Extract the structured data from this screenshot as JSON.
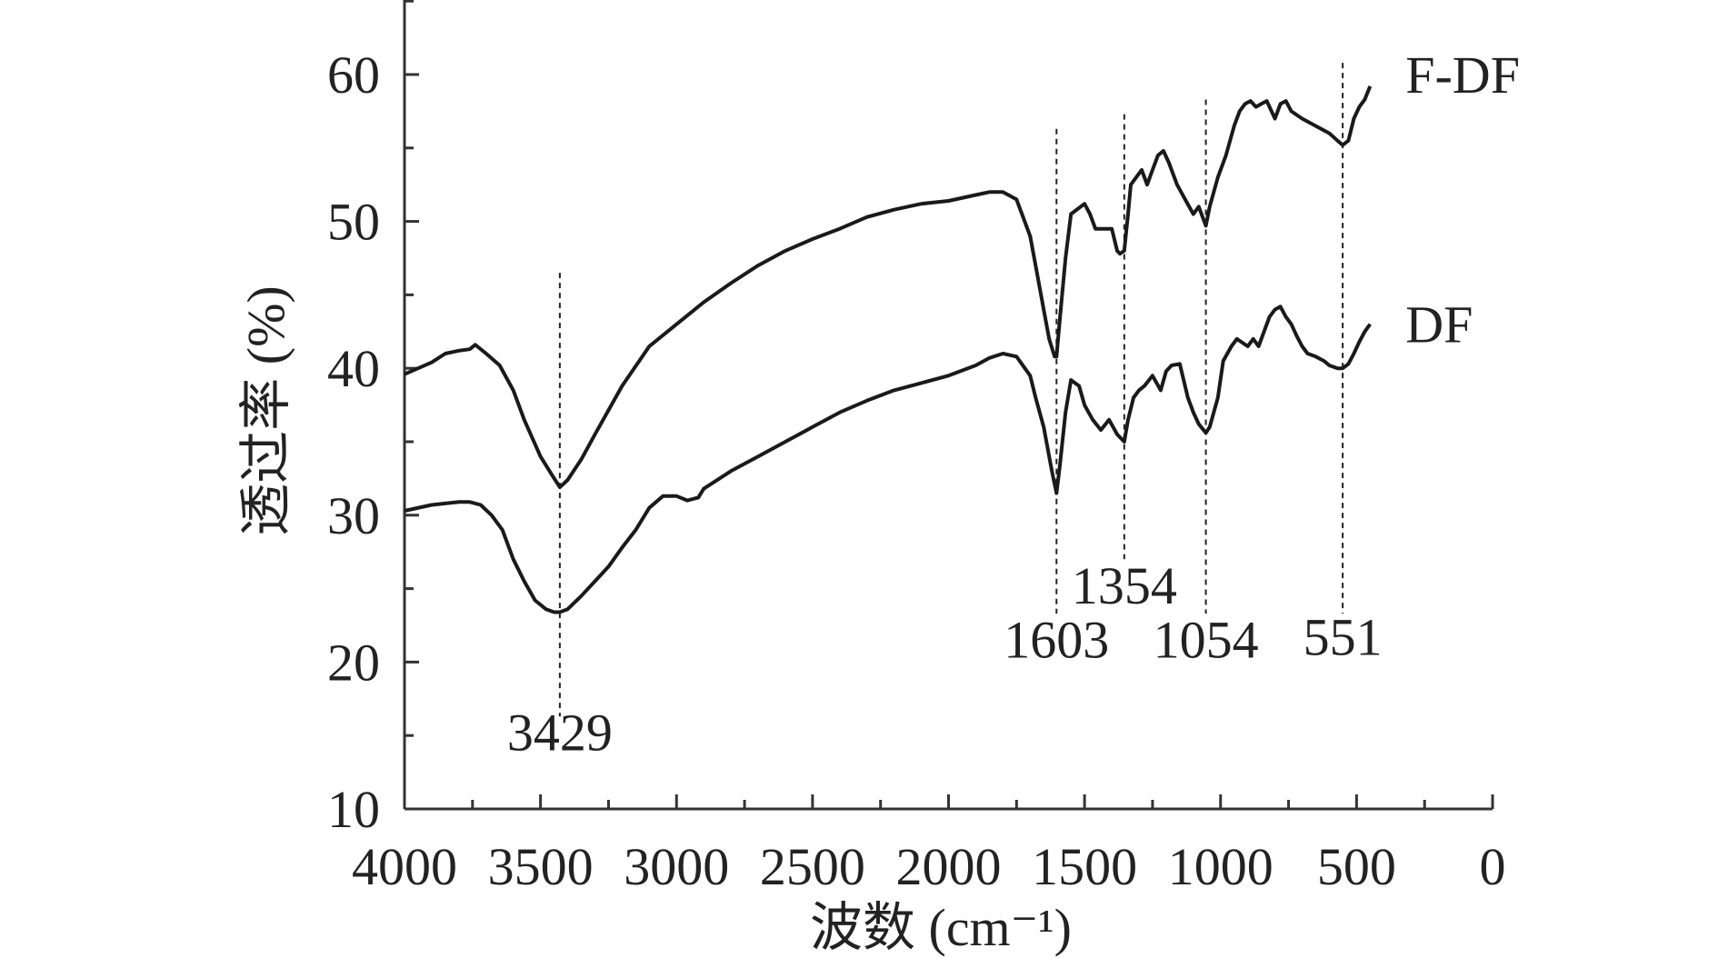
{
  "chart_data": {
    "type": "line",
    "title": "",
    "xlabel": "波数 (cm⁻¹)",
    "ylabel": "透过率 (%)",
    "xlim": [
      4000,
      0
    ],
    "ylim": [
      10,
      65
    ],
    "x_reversed": true,
    "x_ticks": [
      4000,
      3500,
      3000,
      2500,
      2000,
      1500,
      1000,
      500,
      0
    ],
    "x_tick_labels": [
      "4000",
      "3500",
      "3000",
      "2500",
      "2000",
      "1500",
      "1000",
      "500",
      "0"
    ],
    "y_ticks": [
      10,
      20,
      30,
      40,
      50,
      60
    ],
    "y_tick_labels": [
      "10",
      "20",
      "30",
      "40",
      "50",
      "60"
    ],
    "grid": false,
    "line_color": "#1a1a1a",
    "series": [
      {
        "name": "F-DF",
        "x": [
          4000,
          3900,
          3850,
          3800,
          3760,
          3740,
          3700,
          3650,
          3600,
          3560,
          3500,
          3460,
          3429,
          3400,
          3350,
          3300,
          3200,
          3100,
          3000,
          2900,
          2800,
          2700,
          2600,
          2500,
          2400,
          2300,
          2200,
          2100,
          2000,
          1900,
          1850,
          1800,
          1750,
          1700,
          1680,
          1650,
          1630,
          1610,
          1603,
          1590,
          1570,
          1550,
          1500,
          1480,
          1460,
          1420,
          1400,
          1380,
          1370,
          1354,
          1340,
          1330,
          1310,
          1290,
          1270,
          1250,
          1230,
          1210,
          1190,
          1160,
          1130,
          1100,
          1080,
          1054,
          1040,
          1010,
          980,
          950,
          930,
          910,
          890,
          870,
          850,
          830,
          800,
          780,
          760,
          740,
          700,
          650,
          600,
          570,
          551,
          530,
          510,
          490,
          470,
          450
        ],
        "y": [
          39.6,
          40.4,
          41.0,
          41.2,
          41.3,
          41.6,
          41.0,
          40.2,
          38.5,
          36.5,
          34.0,
          32.8,
          31.9,
          32.4,
          33.8,
          35.5,
          38.8,
          41.5,
          43.0,
          44.5,
          45.8,
          47.0,
          48.0,
          48.8,
          49.5,
          50.3,
          50.8,
          51.2,
          51.4,
          51.8,
          52.0,
          52.0,
          51.5,
          49.0,
          47.0,
          44.0,
          42.0,
          40.8,
          40.8,
          43.5,
          47.5,
          50.5,
          51.2,
          50.5,
          49.5,
          49.5,
          49.5,
          48.0,
          47.8,
          48.0,
          50.5,
          52.5,
          53.0,
          53.5,
          52.5,
          53.5,
          54.5,
          54.8,
          54.0,
          52.5,
          51.5,
          50.5,
          51.0,
          49.7,
          51.0,
          53.0,
          54.5,
          56.5,
          57.5,
          58.0,
          58.2,
          57.8,
          58.0,
          58.2,
          57.0,
          58.0,
          58.2,
          57.5,
          57.0,
          56.5,
          56.0,
          55.5,
          55.2,
          55.5,
          57.0,
          57.8,
          58.3,
          59.2
        ]
      },
      {
        "name": "DF",
        "x": [
          4000,
          3900,
          3800,
          3760,
          3720,
          3680,
          3640,
          3600,
          3560,
          3520,
          3480,
          3450,
          3429,
          3400,
          3350,
          3300,
          3250,
          3200,
          3150,
          3100,
          3050,
          3000,
          2960,
          2920,
          2900,
          2800,
          2700,
          2600,
          2500,
          2400,
          2300,
          2200,
          2100,
          2000,
          1900,
          1850,
          1800,
          1750,
          1700,
          1680,
          1650,
          1620,
          1603,
          1590,
          1570,
          1550,
          1520,
          1500,
          1470,
          1440,
          1410,
          1380,
          1354,
          1340,
          1320,
          1300,
          1280,
          1250,
          1220,
          1200,
          1180,
          1150,
          1120,
          1100,
          1080,
          1054,
          1040,
          1010,
          990,
          960,
          940,
          900,
          880,
          860,
          840,
          820,
          800,
          780,
          760,
          740,
          720,
          700,
          680,
          650,
          620,
          600,
          570,
          551,
          530,
          510,
          490,
          470,
          450
        ],
        "y": [
          30.3,
          30.7,
          30.9,
          30.9,
          30.7,
          30.0,
          29.0,
          27.0,
          25.5,
          24.2,
          23.6,
          23.4,
          23.4,
          23.6,
          24.5,
          25.5,
          26.5,
          27.8,
          29.0,
          30.5,
          31.3,
          31.3,
          31.0,
          31.2,
          31.8,
          33.0,
          34.0,
          35.0,
          36.0,
          37.0,
          37.8,
          38.5,
          39.0,
          39.5,
          40.2,
          40.7,
          41.0,
          40.8,
          39.5,
          38.0,
          36.0,
          33.0,
          31.5,
          33.5,
          37.0,
          39.2,
          38.8,
          37.5,
          36.5,
          35.8,
          36.5,
          35.5,
          35.0,
          36.5,
          38.0,
          38.5,
          38.8,
          39.5,
          38.5,
          39.8,
          40.2,
          40.3,
          38.0,
          37.0,
          36.2,
          35.6,
          36.0,
          38.0,
          40.5,
          41.5,
          42.0,
          41.5,
          42.0,
          41.5,
          42.5,
          43.5,
          44.0,
          44.2,
          43.5,
          43.0,
          42.2,
          41.5,
          41.0,
          40.8,
          40.5,
          40.2,
          40.0,
          40.0,
          40.3,
          41.0,
          41.8,
          42.5,
          43.0
        ]
      }
    ],
    "series_labels": [
      {
        "text": "F-DF",
        "x": 320,
        "y": 60.0
      },
      {
        "text": "DF",
        "x": 320,
        "y": 43.0
      }
    ],
    "peak_markers": [
      {
        "x": 3429,
        "label": "3429",
        "y_top": 46.5,
        "y_bottom": 16.3,
        "label_y": 14.0
      },
      {
        "x": 1603,
        "label": "1603",
        "y_top": 56.3,
        "y_bottom": 23.3,
        "label_y": 20.3
      },
      {
        "x": 1354,
        "label": "1354",
        "y_top": 57.3,
        "y_bottom": 27.0,
        "label_y": 24.0
      },
      {
        "x": 1054,
        "label": "1054",
        "y_top": 58.3,
        "y_bottom": 23.3,
        "label_y": 20.3
      },
      {
        "x": 551,
        "label": "551",
        "y_top": 60.8,
        "y_bottom": 23.3,
        "label_y": 20.5
      }
    ]
  }
}
